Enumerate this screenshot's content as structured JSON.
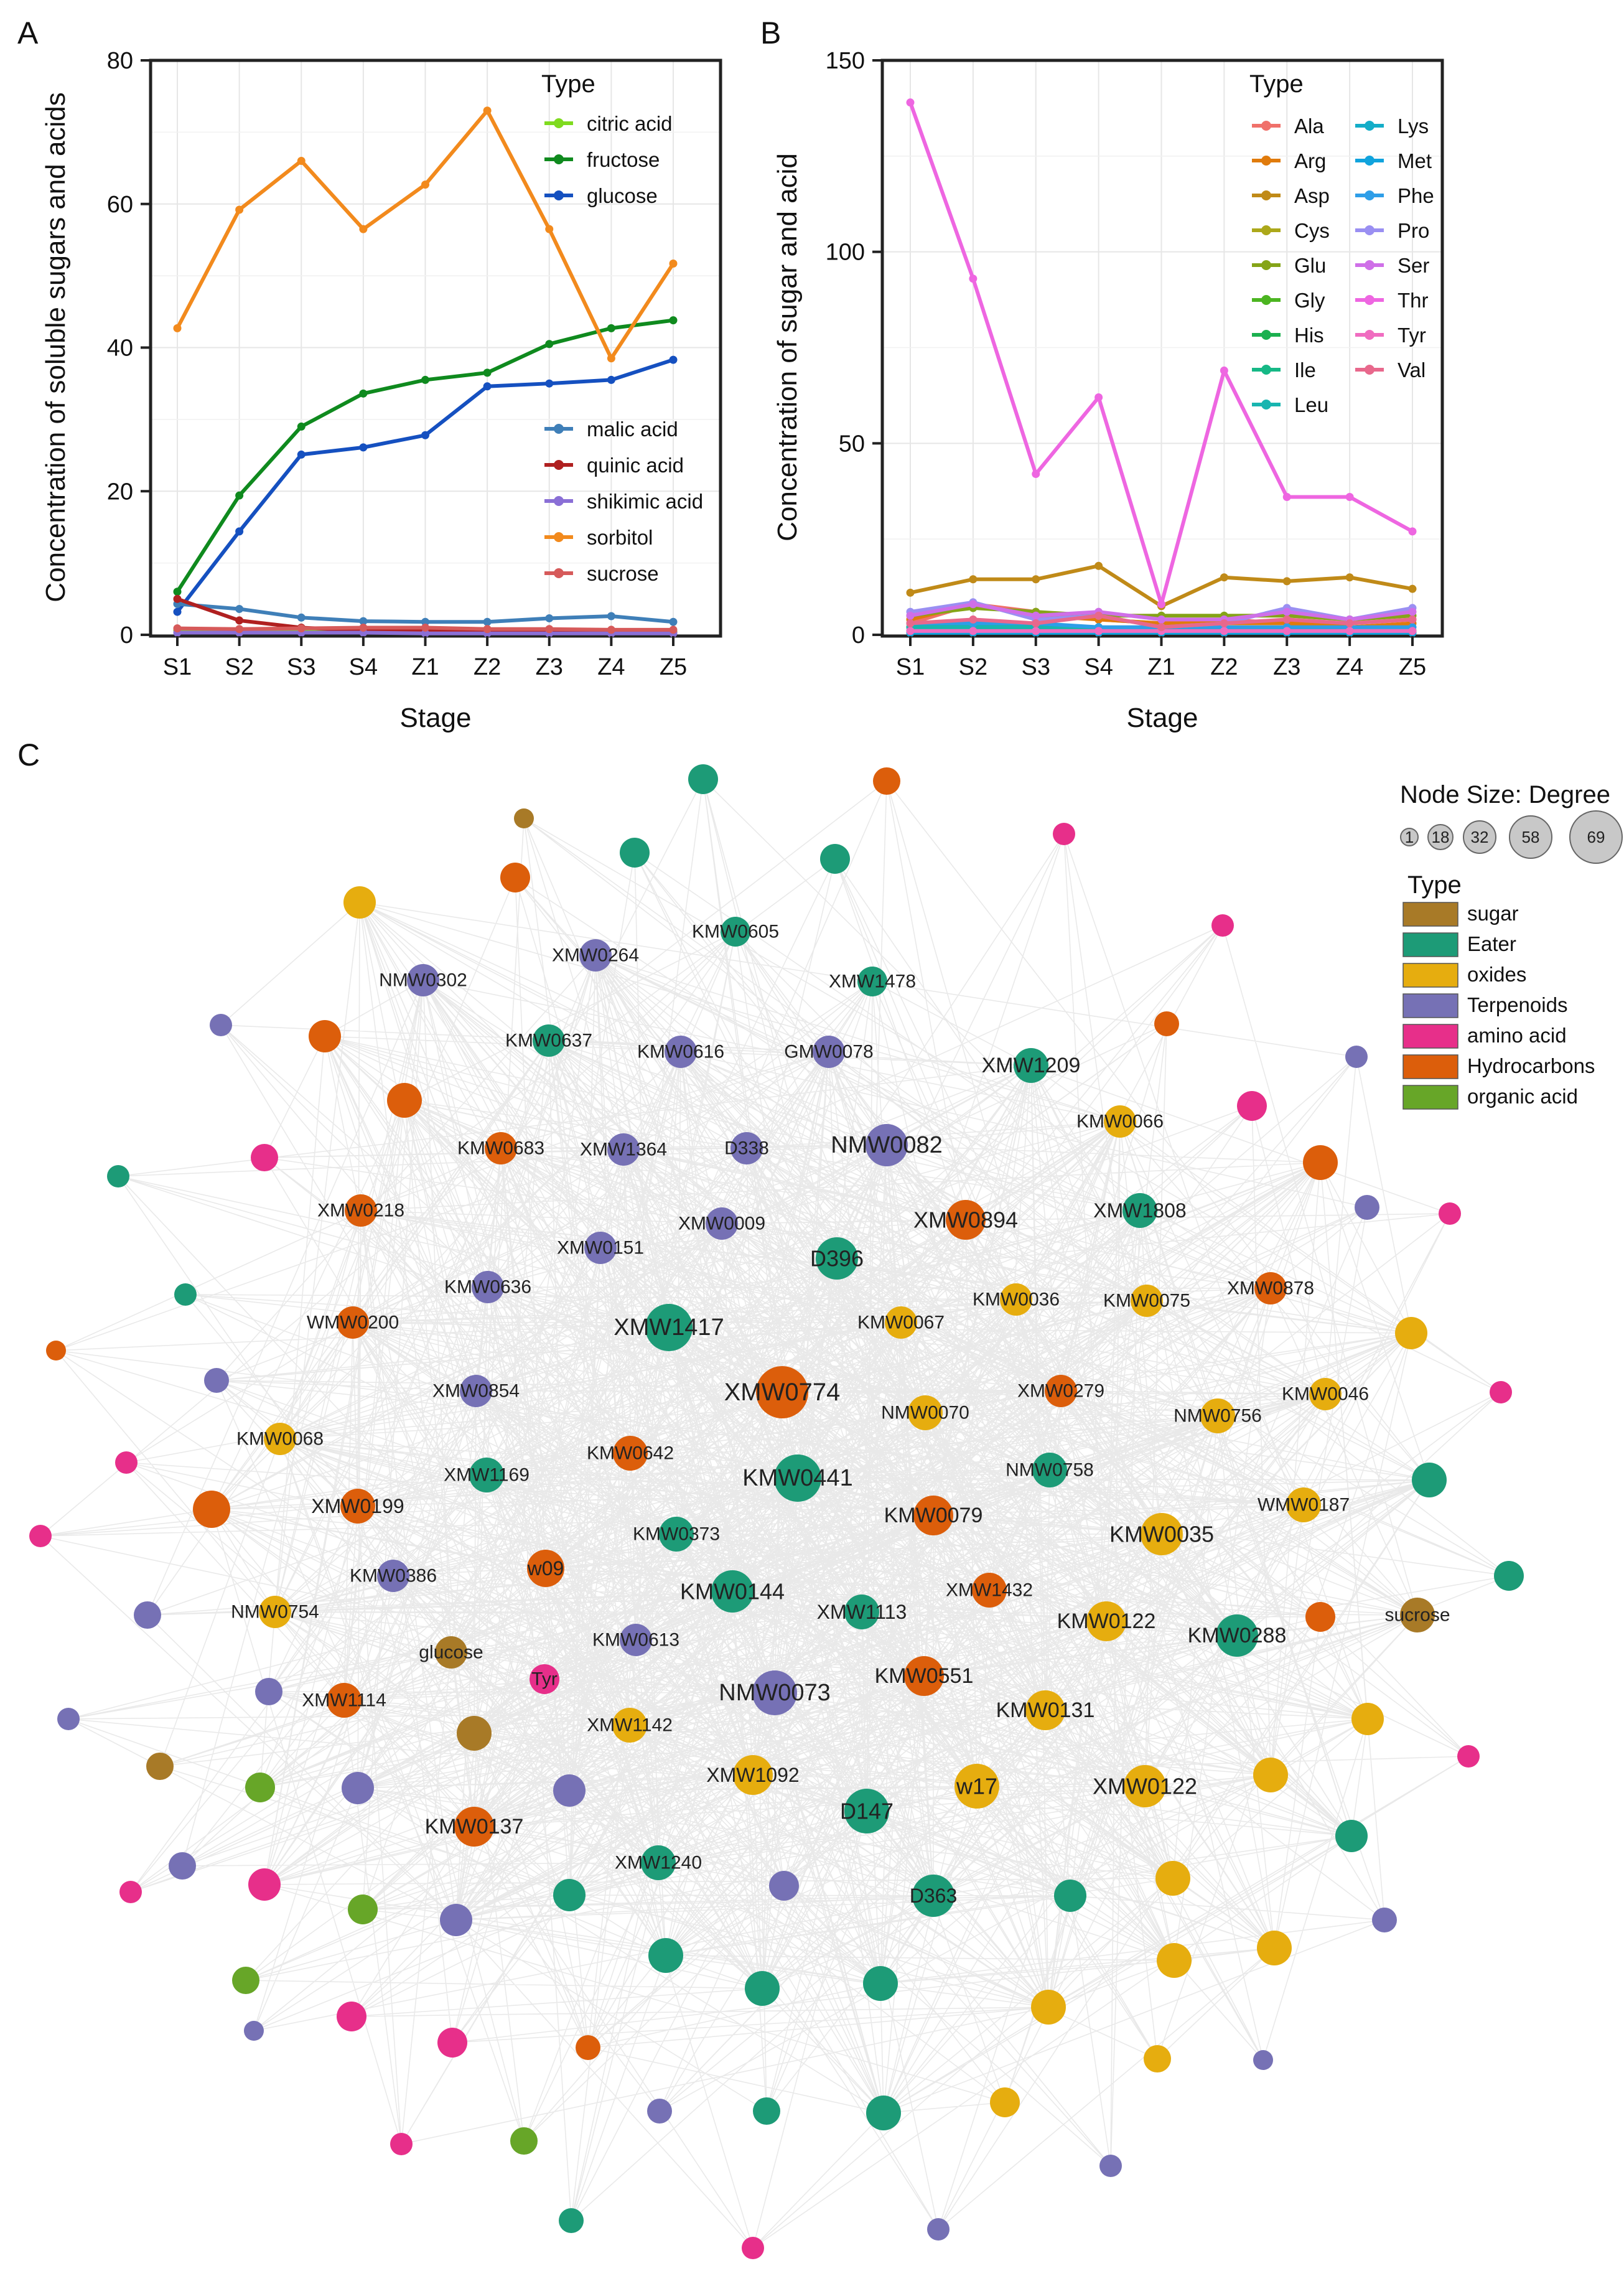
{
  "chart_data": [
    {
      "panel": "A",
      "type": "line",
      "categories": [
        "S1",
        "S2",
        "S3",
        "S4",
        "Z1",
        "Z2",
        "Z3",
        "Z4",
        "Z5"
      ],
      "xlabel": "Stage",
      "ylabel": "Concentration of  soluble sugars and acids",
      "ylim": [
        0,
        80
      ],
      "yticks": [
        0,
        20,
        40,
        60,
        80
      ],
      "grid": true,
      "legend_title": "Type",
      "legend_placement": "inside-right",
      "series": [
        {
          "name": "citric acid",
          "color": "#7fdb1f",
          "values": [
            0.6,
            0.5,
            0.5,
            0.5,
            0.4,
            0.4,
            0.5,
            0.6,
            0.5
          ]
        },
        {
          "name": "fructose",
          "color": "#0f8a1e",
          "values": [
            6,
            19.4,
            29,
            33.6,
            35.5,
            36.5,
            40.5,
            42.7,
            43.8
          ]
        },
        {
          "name": "glucose",
          "color": "#1550c0",
          "values": [
            3.2,
            14.4,
            25.1,
            26.1,
            27.8,
            34.6,
            35,
            35.5,
            38.3
          ]
        },
        {
          "name": "malic acid",
          "color": "#3f7fb8",
          "values": [
            4.3,
            3.6,
            2.4,
            1.9,
            1.8,
            1.8,
            2.3,
            2.6,
            1.8
          ]
        },
        {
          "name": "quinic acid",
          "color": "#b02020",
          "values": [
            5,
            2,
            1,
            0.6,
            0.5,
            0.5,
            0.4,
            0.4,
            0.3
          ]
        },
        {
          "name": "shikimic acid",
          "color": "#8a6fd6",
          "values": [
            0.3,
            0.3,
            0.3,
            0.3,
            0.2,
            0.2,
            0.2,
            0.2,
            0.2
          ]
        },
        {
          "name": "sorbitol",
          "color": "#f28a1d",
          "values": [
            42.7,
            59.2,
            66,
            56.5,
            62.7,
            73,
            56.5,
            38.5,
            51.7
          ]
        },
        {
          "name": "sucrose",
          "color": "#d65a5a",
          "values": [
            0.9,
            0.8,
            0.9,
            1,
            1,
            0.8,
            0.8,
            0.7,
            0.7
          ]
        }
      ]
    },
    {
      "panel": "B",
      "type": "line",
      "categories": [
        "S1",
        "S2",
        "S3",
        "S4",
        "Z1",
        "Z2",
        "Z3",
        "Z4",
        "Z5"
      ],
      "xlabel": "Stage",
      "ylabel": "Concentration of sugar and acid",
      "ylim": [
        0,
        150
      ],
      "yticks": [
        0,
        50,
        100,
        150
      ],
      "grid": true,
      "legend_title": "Type",
      "legend_placement": "top-right",
      "series": [
        {
          "name": "Ala",
          "color": "#f0706a",
          "values": [
            3,
            8,
            6,
            4,
            3,
            4,
            3,
            3,
            4
          ]
        },
        {
          "name": "Arg",
          "color": "#e07b0c",
          "values": [
            4,
            8,
            5,
            4,
            3,
            3,
            3,
            2,
            3
          ]
        },
        {
          "name": "Asp",
          "color": "#c08a18",
          "values": [
            11,
            14.5,
            14.5,
            18,
            7.5,
            15,
            14,
            15,
            12
          ]
        },
        {
          "name": "Cys",
          "color": "#aca81a",
          "values": [
            1,
            1,
            1,
            1,
            1,
            1,
            1,
            1,
            1
          ]
        },
        {
          "name": "Glu",
          "color": "#85a418",
          "values": [
            5,
            7,
            6,
            5,
            5,
            5,
            5,
            4,
            5
          ]
        },
        {
          "name": "Gly",
          "color": "#4cb521",
          "values": [
            2,
            2,
            1.5,
            1.5,
            1,
            1.5,
            1.5,
            1,
            1
          ]
        },
        {
          "name": "His",
          "color": "#1bb04f",
          "values": [
            1,
            1,
            1,
            1,
            1,
            1,
            1,
            1,
            1
          ]
        },
        {
          "name": "Ile",
          "color": "#16b886",
          "values": [
            2,
            3,
            2,
            2,
            1,
            1,
            1,
            1,
            1
          ]
        },
        {
          "name": "Leu",
          "color": "#18b5b0",
          "values": [
            2,
            2,
            2,
            2,
            1,
            1,
            1,
            1,
            1
          ]
        },
        {
          "name": "Lys",
          "color": "#14adc8",
          "values": [
            1,
            1,
            1,
            1,
            1,
            1,
            1,
            1,
            1
          ]
        },
        {
          "name": "Met",
          "color": "#10a3dd",
          "values": [
            0.5,
            0.5,
            0.5,
            0.5,
            0.5,
            0.5,
            0.5,
            0.5,
            0.5
          ]
        },
        {
          "name": "Phe",
          "color": "#2e9ee8",
          "values": [
            3,
            3,
            3,
            2,
            2,
            2,
            2,
            2,
            2
          ]
        },
        {
          "name": "Pro",
          "color": "#9a8ff2",
          "values": [
            6,
            8.5,
            4,
            5,
            2,
            3,
            7,
            4,
            7
          ]
        },
        {
          "name": "Ser",
          "color": "#cf6fe8",
          "values": [
            5,
            8,
            5,
            6,
            4,
            4,
            6,
            4,
            6
          ]
        },
        {
          "name": "Thr",
          "color": "#ee66e1",
          "values": [
            139,
            93,
            42,
            62,
            8,
            69,
            36,
            36,
            27
          ]
        },
        {
          "name": "Tyr",
          "color": "#f06cc0",
          "values": [
            1,
            1,
            1,
            1,
            1,
            1,
            1,
            1,
            1
          ]
        },
        {
          "name": "Val",
          "color": "#e8688c",
          "values": [
            3,
            4,
            3,
            5,
            2,
            3,
            4,
            3,
            4
          ]
        }
      ]
    },
    {
      "panel": "C",
      "type": "network",
      "size_legend_title": "Node Size:  Degree",
      "size_legend_values": [
        1,
        18,
        32,
        58,
        69
      ],
      "type_legend_title": "Type",
      "types": [
        {
          "name": "sugar",
          "color": "#a87a27"
        },
        {
          "name": "Eater",
          "color": "#1d9b77"
        },
        {
          "name": "oxides",
          "color": "#e6ad0f"
        },
        {
          "name": "Terpenoids",
          "color": "#7671b5"
        },
        {
          "name": "amino acid",
          "color": "#e72f8a"
        },
        {
          "name": "Hydrocarbons",
          "color": "#dc5e0b"
        },
        {
          "name": "organic acid",
          "color": "#67a628"
        }
      ],
      "labels": [
        "KMW0605",
        "XMW0264",
        "NMW0302",
        "XMW1478",
        "KMW0637",
        "KMW0616",
        "GMW0078",
        "XMW1209",
        "KMW0066",
        "KMW0683",
        "XMW1364",
        "D338",
        "NMW0082",
        "XMW0218",
        "XMW0009",
        "XMW0894",
        "XMW1808",
        "XMW0151",
        "D396",
        "KMW0636",
        "KMW0036",
        "KMW0075",
        "XMW0878",
        "WMW0200",
        "XMW1417",
        "KMW0067",
        "XMW0854",
        "XMW0774",
        "XMW0279",
        "KMW0046",
        "KMW0068",
        "NMW0070",
        "NMW0756",
        "KMW0642",
        "XMW1169",
        "KMW0441",
        "NMW0758",
        "XMW0199",
        "KMW0079",
        "WMW0187",
        "KMW0373",
        "KMW0035",
        "w09",
        "KMW0386",
        "NMW0754",
        "KMW0144",
        "XMW1113",
        "XMW1432",
        "KMW0122",
        "KMW0288",
        "sucrose",
        "glucose",
        "KMW0613",
        "Tyr",
        "KMW0551",
        "XMW1114",
        "NMW0073",
        "KMW0131",
        "XMW1142",
        "XMW1092",
        "w17",
        "XMW0122",
        "D147",
        "KMW0137",
        "XMW1240",
        "D363"
      ]
    }
  ]
}
